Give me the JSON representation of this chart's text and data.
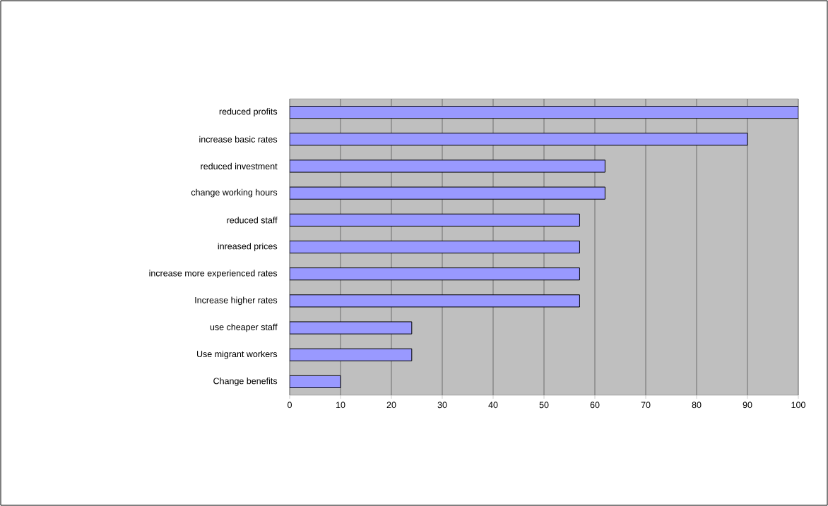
{
  "chart_data": {
    "type": "bar",
    "orientation": "horizontal",
    "categories": [
      "reduced profits",
      "increase basic rates",
      "reduced investment",
      "change working hours",
      "reduced staff",
      "inreased prices",
      "increase more experienced rates",
      "Increase higher rates",
      "use cheaper staff",
      "Use migrant workers",
      "Change benefits"
    ],
    "values": [
      100,
      90,
      62,
      62,
      57,
      57,
      57,
      57,
      24,
      24,
      10
    ],
    "color": "#9999ff",
    "xlim": [
      0,
      100
    ],
    "xticks": [
      0,
      10,
      20,
      30,
      40,
      50,
      60,
      70,
      80,
      90,
      100
    ],
    "grid": "x"
  }
}
